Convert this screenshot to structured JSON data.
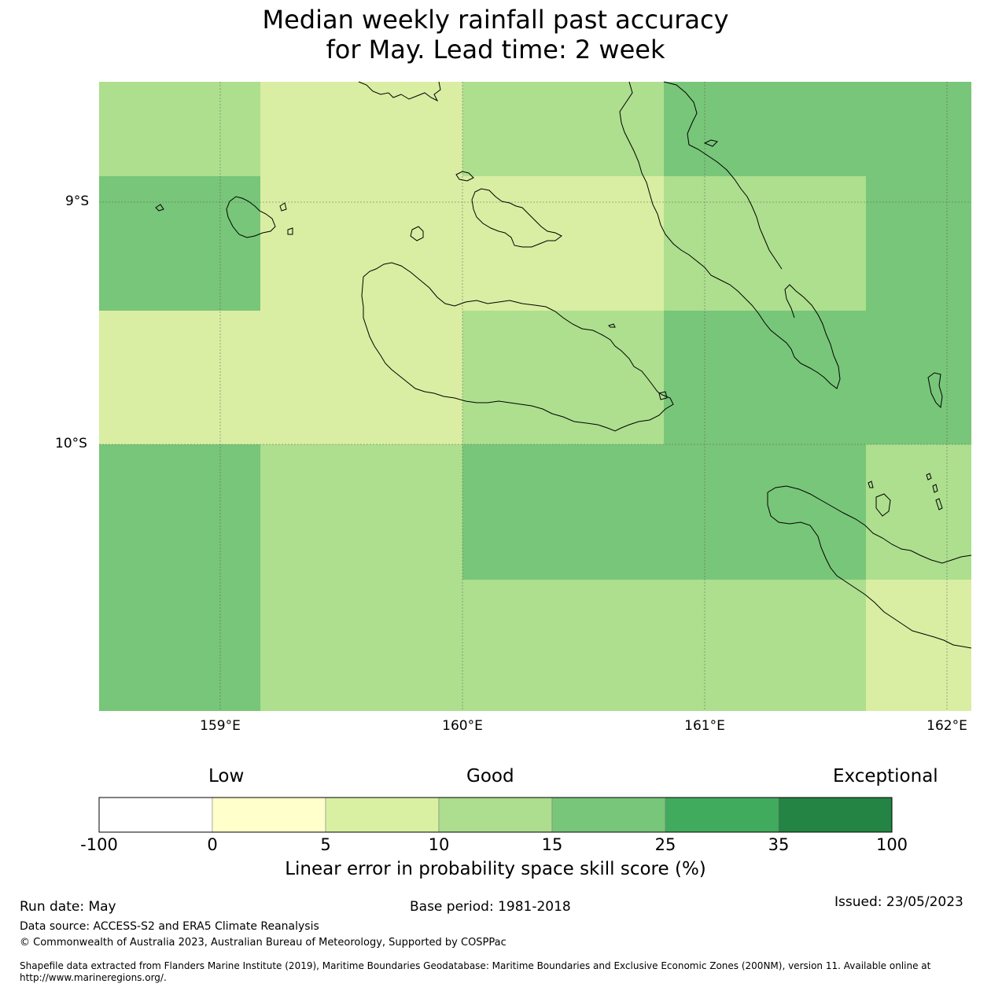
{
  "title_line1": "Median weekly rainfall past accuracy",
  "title_line2": "for May. Lead time: 2 week",
  "map": {
    "lat_labels": [
      "9°S",
      "10°S"
    ],
    "lon_labels": [
      "159°E",
      "160°E",
      "161°E",
      "162°E"
    ],
    "colors": {
      "c0_5": "#d9eea2",
      "c5_10": "#d9eea2",
      "c10_15": "#addf8e",
      "c15_25": "#78c679",
      "ocean_border": "#000000"
    }
  },
  "colorbar": {
    "category_labels": {
      "low": "Low",
      "good": "Good",
      "exceptional": "Exceptional"
    },
    "ticks": [
      "-100",
      "0",
      "5",
      "10",
      "15",
      "25",
      "35",
      "100"
    ],
    "colors": [
      "#ffffff",
      "#ffffcc",
      "#d9f0a3",
      "#addd8e",
      "#78c679",
      "#41ab5d",
      "#238443"
    ],
    "title": "Linear error in probability space skill score (%)"
  },
  "footer": {
    "run_date": "Run date: May",
    "base_period": "Base period: 1981-2018",
    "issued": "Issued: 23/05/2023",
    "data_source": "Data source: ACCESS-S2 and ERA5 Climate Reanalysis",
    "copyright": "© Commonwealth of Australia 2023, Australian Bureau of Meteorology, Supported by COSPPac",
    "shapefile_line1": "Shapefile data extracted from Flanders Marine Institute (2019), Maritime Boundaries Geodatabase: Maritime Boundaries and Exclusive Economic Zones (200NM), version 11. Available online at",
    "shapefile_line2": "http://www.marineregions.org/."
  }
}
